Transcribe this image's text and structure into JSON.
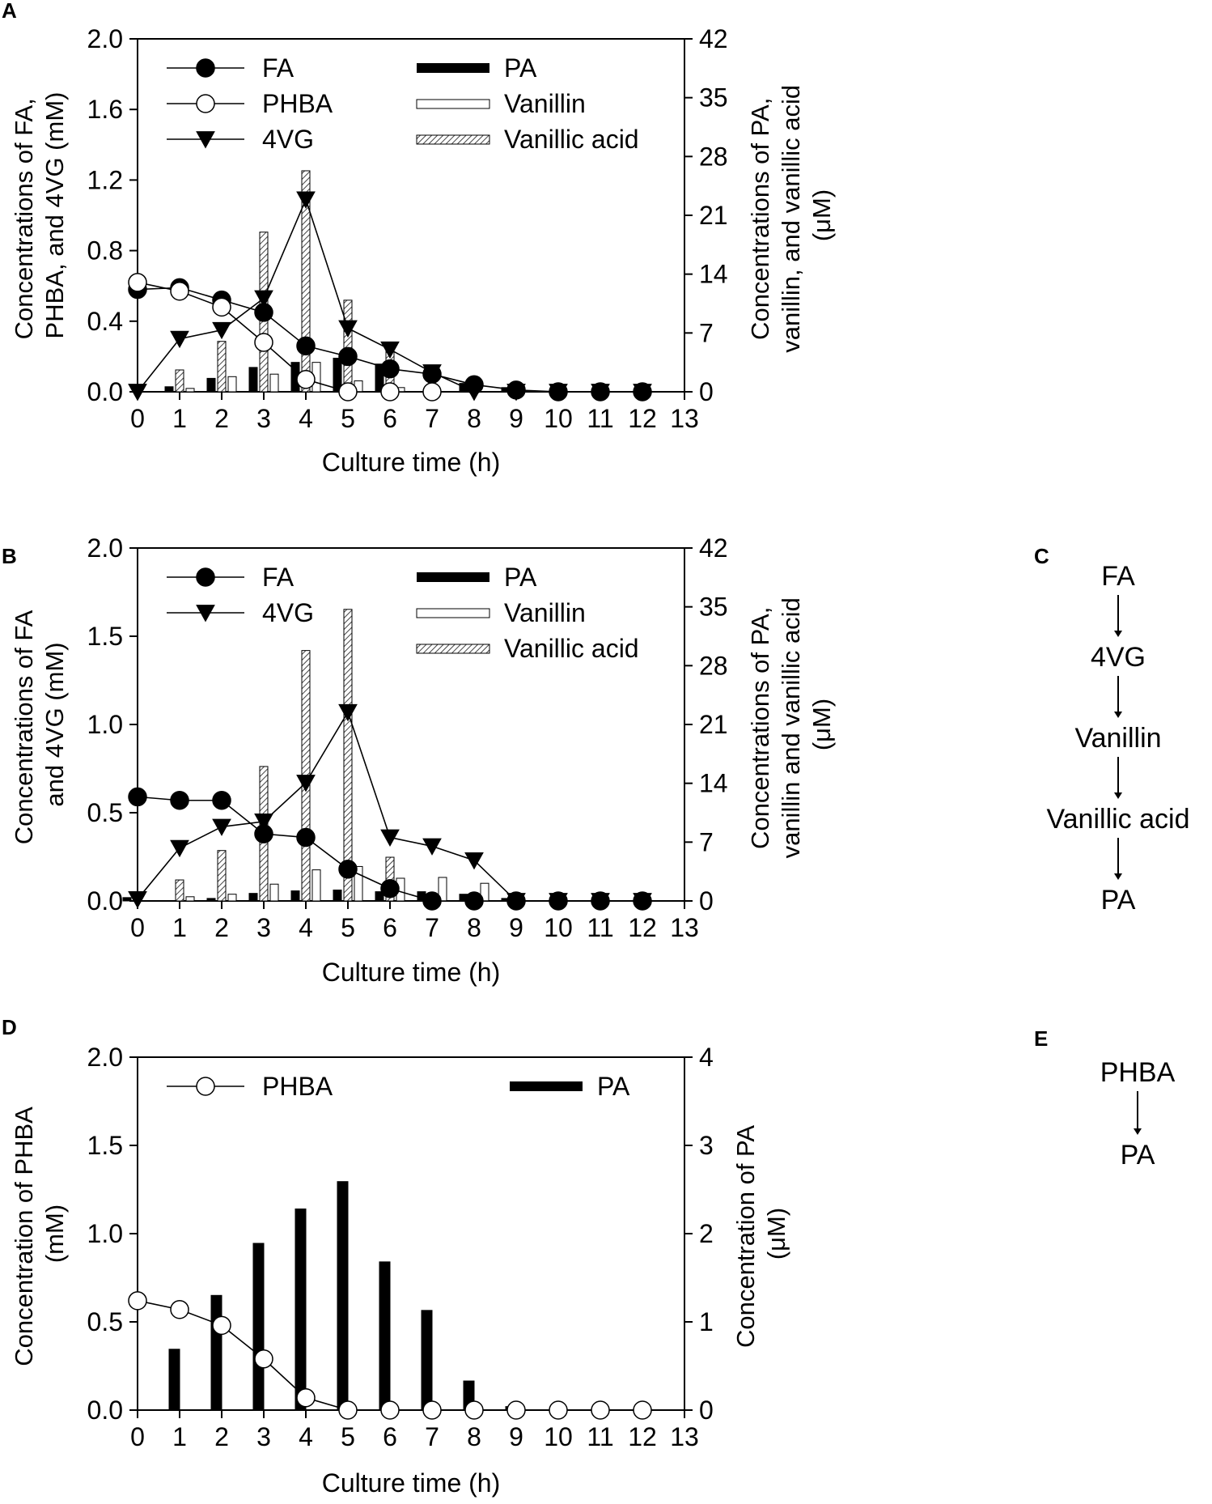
{
  "figure": {
    "colors": {
      "axis": "#000000",
      "bar_fill": "#000000",
      "open_bar": "#ffffff",
      "hatch": "#555555",
      "marker_open": "#ffffff",
      "marker_filled": "#000000"
    }
  },
  "chart_data": [
    {
      "panel": "A",
      "type": "bar+line",
      "xlabel": "Culture time (h)",
      "ylabel_lines": [
        "Concentrations of FA,",
        "PHBA, and 4VG (mM)"
      ],
      "y2label_lines": [
        "Concentrations of PA,",
        "vanillin, and vanillic acid",
        "(μM)"
      ],
      "xlim": [
        0,
        13
      ],
      "x_ticks": [
        "0",
        "1",
        "2",
        "3",
        "4",
        "5",
        "6",
        "7",
        "8",
        "9",
        "10",
        "11",
        "12",
        "13"
      ],
      "ylim": [
        0,
        2.0
      ],
      "y_ticks": [
        "0.0",
        "0.4",
        "0.8",
        "1.2",
        "1.6",
        "2.0"
      ],
      "y2lim": [
        0,
        42
      ],
      "y2_ticks": [
        "0",
        "7",
        "14",
        "21",
        "28",
        "35",
        "42"
      ],
      "legend_left": [
        "FA",
        "PHBA",
        "4VG"
      ],
      "legend_right": [
        "PA",
        "Vanillin",
        "Vanillic acid"
      ],
      "x": [
        0,
        1,
        2,
        3,
        4,
        5,
        6,
        7,
        8,
        9,
        10,
        11,
        12
      ],
      "lines": [
        {
          "name": "FA",
          "marker": "filled-circle",
          "values": [
            0.58,
            0.59,
            0.52,
            0.45,
            0.26,
            0.2,
            0.13,
            0.1,
            0.04,
            0.01,
            0.0,
            0.0,
            0.0
          ]
        },
        {
          "name": "PHBA",
          "marker": "open-circle",
          "values": [
            0.62,
            0.57,
            0.48,
            0.28,
            0.07,
            0.0,
            0.0,
            0.0,
            null,
            null,
            null,
            null,
            null
          ]
        },
        {
          "name": "4VG",
          "marker": "filled-triangle-down",
          "values": [
            0.0,
            0.3,
            0.35,
            0.53,
            1.09,
            0.36,
            0.24,
            0.11,
            0.0,
            0.0,
            0.0,
            0.0,
            0.0
          ]
        }
      ],
      "bars": [
        {
          "name": "PA",
          "style": "solid",
          "values": [
            0,
            0.6,
            1.6,
            2.9,
            3.5,
            4.0,
            3.3,
            0,
            1.0,
            0.5,
            0,
            0,
            0
          ]
        },
        {
          "name": "Vanillic acid",
          "style": "hatch",
          "values": [
            0,
            2.6,
            6.0,
            19.0,
            26.3,
            10.9,
            5.6,
            0,
            0,
            0,
            0,
            0,
            0
          ]
        },
        {
          "name": "Vanillin",
          "style": "open",
          "values": [
            0,
            0.4,
            1.8,
            2.1,
            3.5,
            1.3,
            0.5,
            0,
            0,
            0,
            0,
            0,
            0
          ]
        }
      ]
    },
    {
      "panel": "B",
      "type": "bar+line",
      "xlabel": "Culture time (h)",
      "ylabel_lines": [
        "Concentrations of FA",
        "and 4VG (mM)"
      ],
      "y2label_lines": [
        "Concentrations of PA,",
        "vanillin and vanillic acid",
        "(μM)"
      ],
      "xlim": [
        0,
        13
      ],
      "x_ticks": [
        "0",
        "1",
        "2",
        "3",
        "4",
        "5",
        "6",
        "7",
        "8",
        "9",
        "10",
        "11",
        "12",
        "13"
      ],
      "ylim": [
        0,
        2.0
      ],
      "y_ticks": [
        "0.0",
        "0.5",
        "1.0",
        "1.5",
        "2.0"
      ],
      "y2lim": [
        0,
        42
      ],
      "y2_ticks": [
        "0",
        "7",
        "14",
        "21",
        "28",
        "35",
        "42"
      ],
      "legend_left": [
        "FA",
        "4VG"
      ],
      "legend_right": [
        "PA",
        "Vanillin",
        "Vanillic acid"
      ],
      "x": [
        0,
        1,
        2,
        3,
        4,
        5,
        6,
        7,
        8,
        9,
        10,
        11,
        12
      ],
      "lines": [
        {
          "name": "FA",
          "marker": "filled-circle",
          "values": [
            0.59,
            0.57,
            0.57,
            0.38,
            0.36,
            0.18,
            0.07,
            0.0,
            0.0,
            0.0,
            0.0,
            0.0,
            0.0
          ]
        },
        {
          "name": "4VG",
          "marker": "filled-triangle-down",
          "values": [
            0.01,
            0.3,
            0.42,
            0.45,
            0.67,
            1.07,
            0.36,
            0.31,
            0.23,
            0.0,
            0.0,
            0.0,
            0.0
          ]
        }
      ],
      "bars": [
        {
          "name": "PA",
          "style": "solid",
          "values": [
            0.4,
            0,
            0.3,
            0.9,
            1.2,
            1.3,
            1.1,
            1.1,
            0.8,
            0.3,
            0,
            0,
            0
          ]
        },
        {
          "name": "Vanillic acid",
          "style": "hatch",
          "values": [
            0,
            2.5,
            6.0,
            16.0,
            29.8,
            34.7,
            5.2,
            0.6,
            0.4,
            0,
            0,
            0,
            0
          ]
        },
        {
          "name": "Vanillin",
          "style": "open",
          "values": [
            0,
            0.5,
            0.8,
            2.0,
            3.7,
            4.1,
            2.7,
            2.8,
            2.1,
            0,
            0,
            0,
            0
          ]
        }
      ]
    },
    {
      "panel": "D",
      "type": "bar+line",
      "xlabel": "Culture time (h)",
      "ylabel_lines": [
        "Concentration of PHBA",
        "(mM)"
      ],
      "y2label_lines": [
        "Concentration of PA",
        "(μM)"
      ],
      "xlim": [
        0,
        13
      ],
      "x_ticks": [
        "0",
        "1",
        "2",
        "3",
        "4",
        "5",
        "6",
        "7",
        "8",
        "9",
        "10",
        "11",
        "12",
        "13"
      ],
      "ylim": [
        0,
        2.0
      ],
      "y_ticks": [
        "0.0",
        "0.5",
        "1.0",
        "1.5",
        "2.0"
      ],
      "y2lim": [
        0,
        4
      ],
      "y2_ticks": [
        "0",
        "1",
        "2",
        "3",
        "4"
      ],
      "legend_left": [
        "PHBA"
      ],
      "legend_right": [
        "PA"
      ],
      "x": [
        0,
        1,
        2,
        3,
        4,
        5,
        6,
        7,
        8,
        9,
        10,
        11,
        12
      ],
      "lines": [
        {
          "name": "PHBA",
          "marker": "open-circle",
          "values": [
            0.62,
            0.57,
            0.48,
            0.29,
            0.07,
            0.0,
            0.0,
            0.0,
            0.0,
            0.0,
            0.0,
            0.0,
            0.0
          ]
        }
      ],
      "bars": [
        {
          "name": "PA",
          "style": "solid",
          "values": [
            0,
            0.69,
            1.3,
            1.89,
            2.28,
            2.59,
            1.68,
            1.13,
            0.33,
            0.04,
            0,
            0,
            0
          ]
        }
      ]
    }
  ],
  "pathways": [
    {
      "panel": "C",
      "steps": [
        "FA",
        "4VG",
        "Vanillin",
        "Vanillic acid",
        "PA"
      ]
    },
    {
      "panel": "E",
      "steps": [
        "PHBA",
        "PA"
      ]
    }
  ]
}
